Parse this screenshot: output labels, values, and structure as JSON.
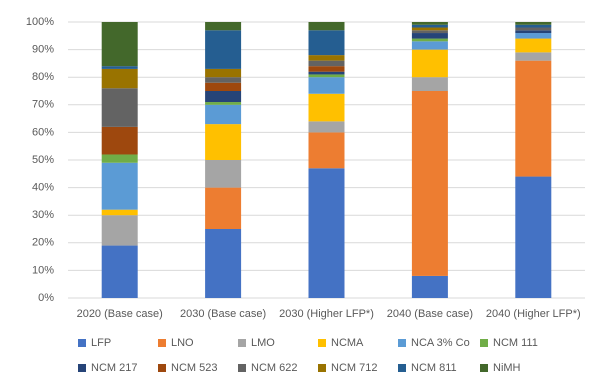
{
  "chart_data": {
    "type": "stacked_bar",
    "categories": [
      "2020 (Base case)",
      "2030 (Base case)",
      "2030 (Higher LFP*)",
      "2040 (Base case)",
      "2040 (Higher LFP*)"
    ],
    "series": [
      {
        "name": "LFP",
        "color": "#4472c4",
        "values": [
          19,
          25,
          47,
          8,
          44
        ]
      },
      {
        "name": "LNO",
        "color": "#ed7d31",
        "values": [
          0,
          15,
          13,
          67,
          42
        ]
      },
      {
        "name": "LMO",
        "color": "#a5a5a5",
        "values": [
          11,
          10,
          4,
          5,
          3
        ]
      },
      {
        "name": "NCMA",
        "color": "#ffc000",
        "values": [
          2,
          13,
          10,
          10,
          5
        ]
      },
      {
        "name": "NCA 3% Co",
        "color": "#5b9bd5",
        "values": [
          17,
          7,
          6,
          3,
          2
        ]
      },
      {
        "name": "NCM 111",
        "color": "#70ad47",
        "values": [
          3,
          1,
          1,
          1,
          0
        ]
      },
      {
        "name": "NCM 217",
        "color": "#264478",
        "values": [
          0,
          4,
          1,
          2,
          1
        ]
      },
      {
        "name": "NCM 523",
        "color": "#9e480e",
        "values": [
          10,
          3,
          2,
          0,
          0
        ]
      },
      {
        "name": "NCM 622",
        "color": "#636363",
        "values": [
          14,
          2,
          2,
          1,
          1
        ]
      },
      {
        "name": "NCM 712",
        "color": "#997300",
        "values": [
          7,
          3,
          2,
          1,
          0
        ]
      },
      {
        "name": "NCM 811",
        "color": "#255e91",
        "values": [
          1,
          14,
          9,
          1,
          1
        ]
      },
      {
        "name": "NiMH",
        "color": "#43682b",
        "values": [
          16,
          3,
          3,
          1,
          1
        ]
      }
    ],
    "ylim": [
      0,
      100
    ],
    "yticks": [
      {
        "value": 0,
        "label": "0%"
      },
      {
        "value": 10,
        "label": "10%"
      },
      {
        "value": 20,
        "label": "20%"
      },
      {
        "value": 30,
        "label": "30%"
      },
      {
        "value": 40,
        "label": "40%"
      },
      {
        "value": 50,
        "label": "50%"
      },
      {
        "value": 60,
        "label": "60%"
      },
      {
        "value": 70,
        "label": "70%"
      },
      {
        "value": 80,
        "label": "80%"
      },
      {
        "value": 90,
        "label": "90%"
      },
      {
        "value": 100,
        "label": "100%"
      }
    ],
    "grid": true
  }
}
